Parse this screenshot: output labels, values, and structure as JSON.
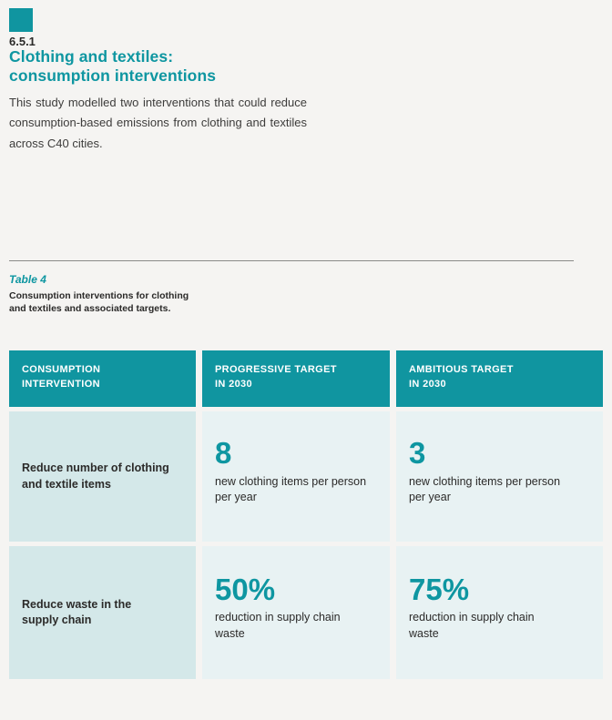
{
  "header": {
    "section_number": "6.5.1",
    "title_line1": "Clothing and textiles:",
    "title_line2": "consumption interventions",
    "intro": "This study modelled two interventions that could reduce consumption-based emissions from clothing and textiles across C40 cities."
  },
  "table": {
    "label": "Table 4",
    "caption": "Consumption interventions for clothing and textiles and associated targets.",
    "headers": [
      {
        "line1": "CONSUMPTION",
        "line2": "INTERVENTION"
      },
      {
        "line1": "PROGRESSIVE TARGET",
        "line2": "IN 2030"
      },
      {
        "line1": "AMBITIOUS TARGET",
        "line2": "IN 2030"
      }
    ],
    "rows": [
      {
        "intervention": "Reduce number of clothing and textile items",
        "progressive": {
          "value": "8",
          "desc": "new clothing items per person per year"
        },
        "ambitious": {
          "value": "3",
          "desc": "new clothing items per person per year"
        }
      },
      {
        "intervention": "Reduce waste in the supply chain",
        "progressive": {
          "value": "50%",
          "desc": "reduction in supply chain waste"
        },
        "ambitious": {
          "value": "75%",
          "desc": "reduction in supply chain waste"
        }
      }
    ]
  },
  "colors": {
    "accent_teal": "#0E96A1",
    "header_bg": "#1095A0",
    "label_cell_bg": "#D4E8E9",
    "value_cell_bg": "#E8F2F3",
    "text_dark": "#2B2A29",
    "page_bg": "#F5F4F2"
  }
}
